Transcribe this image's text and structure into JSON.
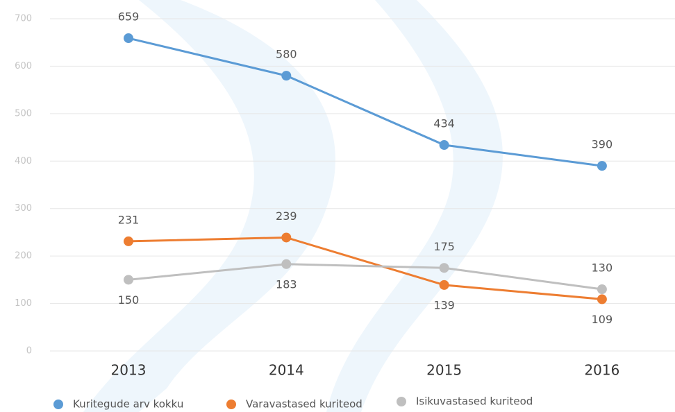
{
  "chart_data": {
    "type": "line",
    "categories": [
      "2013",
      "2014",
      "2015",
      "2016"
    ],
    "series": [
      {
        "name": "Kuritegude arv kokku",
        "color": "#5b9bd5",
        "values": [
          659,
          580,
          434,
          390
        ]
      },
      {
        "name": "Varavastased kuriteod",
        "color": "#ed7d31",
        "values": [
          231,
          239,
          139,
          109
        ]
      },
      {
        "name": "Isikuvastased kuriteod",
        "color": "#bfbfbf",
        "values": [
          150,
          183,
          175,
          130
        ]
      }
    ],
    "ylim": [
      0,
      700
    ],
    "yticks": [
      0,
      100,
      200,
      300,
      400,
      500,
      600,
      700
    ],
    "grid": true
  }
}
